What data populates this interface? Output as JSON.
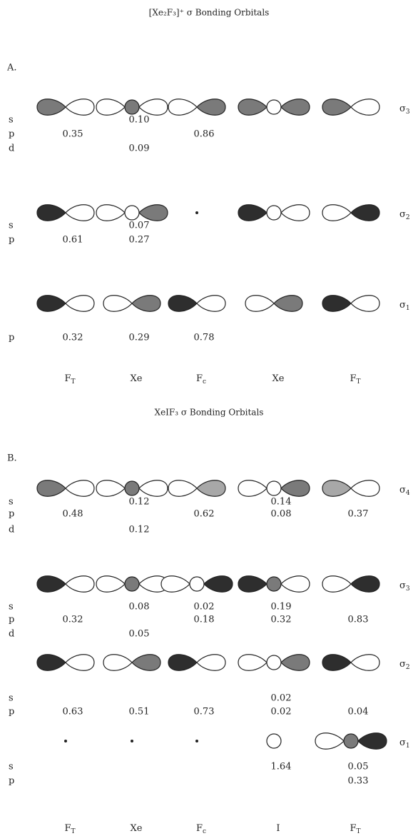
{
  "sections": [
    {
      "title": "[Xe₂F₃]⁺ σ Bonding Orbitals",
      "label": "A.",
      "rows": [
        {
          "orbital": {
            "base": "σ",
            "sub": "3"
          },
          "lines": [
            {
              "label": "s",
              "values": [
                null,
                "0.10",
                null,
                null,
                null
              ]
            },
            {
              "label": "p",
              "values": [
                "0.35",
                null,
                "0.86",
                null,
                null
              ]
            },
            {
              "label": "d",
              "values": [
                null,
                "0.09",
                null,
                null,
                null
              ]
            }
          ]
        },
        {
          "orbital": {
            "base": "σ",
            "sub": "2"
          },
          "lines": [
            {
              "label": "s",
              "values": [
                null,
                "0.07",
                null,
                null,
                null
              ]
            },
            {
              "label": "p",
              "values": [
                "0.61",
                "0.27",
                null,
                null,
                null
              ]
            }
          ]
        },
        {
          "orbital": {
            "base": "σ",
            "sub": "1"
          },
          "lines": [
            {
              "label": "p",
              "values": [
                "0.32",
                "0.29",
                "0.78",
                null,
                null
              ]
            }
          ]
        }
      ],
      "columns": [
        {
          "base": "F",
          "sub": "T"
        },
        {
          "base": "Xe",
          "sub": null
        },
        {
          "base": "F",
          "sub": "c"
        },
        {
          "base": "Xe",
          "sub": null
        },
        {
          "base": "F",
          "sub": "T"
        }
      ]
    },
    {
      "title": "XeIF₃ σ Bonding Orbitals",
      "label": "B.",
      "rows": [
        {
          "orbital": {
            "base": "σ",
            "sub": "4"
          },
          "lines": [
            {
              "label": "s",
              "values": [
                null,
                "0.12",
                null,
                "0.14",
                null
              ]
            },
            {
              "label": "p",
              "values": [
                "0.48",
                null,
                "0.62",
                "0.08",
                "0.37"
              ]
            },
            {
              "label": "d",
              "values": [
                null,
                "0.12",
                null,
                null,
                null
              ]
            }
          ]
        },
        {
          "orbital": {
            "base": "σ",
            "sub": "3"
          },
          "lines": [
            {
              "label": "s",
              "values": [
                null,
                "0.08",
                "0.02",
                "0.19",
                null
              ]
            },
            {
              "label": "p",
              "values": [
                "0.32",
                null,
                "0.18",
                "0.32",
                "0.83"
              ]
            },
            {
              "label": "d",
              "values": [
                null,
                "0.05",
                null,
                null,
                null
              ]
            }
          ]
        },
        {
          "orbital": {
            "base": "σ",
            "sub": "2"
          },
          "lines": [
            {
              "label": "s",
              "values": [
                null,
                null,
                null,
                "0.02",
                null
              ]
            },
            {
              "label": "p",
              "values": [
                "0.63",
                "0.51",
                "0.73",
                "0.02",
                "0.04"
              ]
            }
          ]
        },
        {
          "orbital": {
            "base": "σ",
            "sub": "1"
          },
          "lines": [
            {
              "label": "s",
              "values": [
                null,
                null,
                null,
                "1.64",
                "0.05"
              ]
            },
            {
              "label": "p",
              "values": [
                null,
                null,
                null,
                null,
                "0.33"
              ]
            }
          ]
        }
      ],
      "columns": [
        {
          "base": "F",
          "sub": "T"
        },
        {
          "base": "Xe",
          "sub": null
        },
        {
          "base": "F",
          "sub": "c"
        },
        {
          "base": "I",
          "sub": null
        },
        {
          "base": "F",
          "sub": "T"
        }
      ]
    }
  ]
}
